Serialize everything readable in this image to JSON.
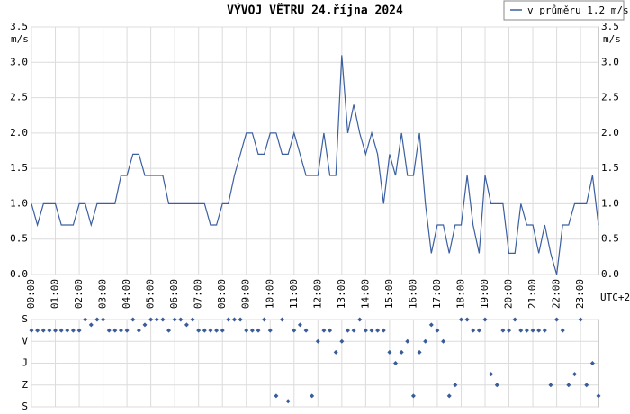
{
  "chart_data": [
    {
      "type": "line",
      "title": "VÝVOJ VĚTRU  24.října 2024",
      "ylabel": "m/s",
      "footer": "UTC+2",
      "categories": [
        "00:00",
        null,
        null,
        null,
        "01:00",
        null,
        null,
        null,
        "02:00",
        null,
        null,
        null,
        "03:00",
        null,
        null,
        null,
        "04:00",
        null,
        null,
        null,
        "05:00",
        null,
        null,
        null,
        "06:00",
        null,
        null,
        null,
        "07:00",
        null,
        null,
        null,
        "08:00",
        null,
        null,
        null,
        "09:00",
        null,
        null,
        null,
        "10:00",
        null,
        null,
        null,
        "11:00",
        null,
        null,
        null,
        "12:00",
        null,
        null,
        null,
        "13:00",
        null,
        null,
        null,
        "14:00",
        null,
        null,
        null,
        "15:00",
        null,
        null,
        null,
        "16:00",
        null,
        null,
        null,
        "17:00",
        null,
        null,
        null,
        "18:00",
        null,
        null,
        null,
        "19:00",
        null,
        null,
        null,
        "20:00",
        null,
        null,
        null,
        "21:00",
        null,
        null,
        null,
        "22:00",
        null,
        null,
        null,
        "23:00",
        null,
        null,
        null
      ],
      "series": [
        {
          "name": "v průměru 1.2 m/s",
          "color": "#3b5fa0",
          "values": [
            1.0,
            0.7,
            1.0,
            1.0,
            1.0,
            0.7,
            0.7,
            0.7,
            1.0,
            1.0,
            0.7,
            1.0,
            1.0,
            1.0,
            1.0,
            1.4,
            1.4,
            1.7,
            1.7,
            1.4,
            1.4,
            1.4,
            1.4,
            1.0,
            1.0,
            1.0,
            1.0,
            1.0,
            1.0,
            1.0,
            0.7,
            0.7,
            1.0,
            1.0,
            1.4,
            1.7,
            2.0,
            2.0,
            1.7,
            1.7,
            2.0,
            2.0,
            1.7,
            1.7,
            2.0,
            1.7,
            1.4,
            1.4,
            1.4,
            2.0,
            1.4,
            1.4,
            3.1,
            2.0,
            2.4,
            2.0,
            1.7,
            2.0,
            1.7,
            1.0,
            1.7,
            1.4,
            2.0,
            1.4,
            1.4,
            2.0,
            1.0,
            0.3,
            0.7,
            0.7,
            0.3,
            0.7,
            0.7,
            1.4,
            0.7,
            0.3,
            1.4,
            1.0,
            1.0,
            1.0,
            0.3,
            0.3,
            1.0,
            0.7,
            0.7,
            0.3,
            0.7,
            0.3,
            0.0,
            0.7,
            0.7,
            1.0,
            1.0,
            1.0,
            1.4,
            0.7
          ]
        }
      ],
      "ylim": [
        0,
        3.5
      ],
      "yticks": [
        {
          "value": 0,
          "label": "0.0"
        },
        0.5,
        {
          "value": 1,
          "label": "1.0"
        },
        1.5,
        {
          "value": 2,
          "label": "2.0"
        },
        2.5,
        {
          "value": 3,
          "label": "3.0"
        },
        3.5
      ],
      "grid": true,
      "legend": "top-right"
    },
    {
      "type": "scatter",
      "color": "#3a5c98",
      "values": [
        45,
        45,
        45,
        45,
        45,
        45,
        45,
        45,
        45,
        0,
        22,
        0,
        0,
        45,
        45,
        45,
        45,
        0,
        45,
        22,
        0,
        0,
        0,
        45,
        0,
        0,
        22,
        0,
        45,
        45,
        45,
        45,
        45,
        0,
        0,
        0,
        45,
        45,
        45,
        0,
        45,
        315,
        0,
        337,
        45,
        22,
        45,
        315,
        90,
        45,
        45,
        135,
        90,
        45,
        45,
        0,
        45,
        45,
        45,
        45,
        135,
        180,
        135,
        90,
        315,
        135,
        90,
        22,
        45,
        90,
        315,
        270,
        0,
        0,
        45,
        45,
        0,
        225,
        270,
        45,
        45,
        0,
        45,
        45,
        45,
        45,
        45,
        270,
        0,
        45,
        270,
        225,
        0,
        270,
        180,
        315
      ],
      "ylim": [
        0,
        360
      ],
      "inverted": true,
      "yticks": [
        {
          "value": 0,
          "label": "S"
        },
        {
          "value": 90,
          "label": "V"
        },
        {
          "value": 180,
          "label": "J"
        },
        {
          "value": 270,
          "label": "Z"
        },
        {
          "value": 360,
          "label": "S"
        }
      ],
      "grid": true
    }
  ]
}
